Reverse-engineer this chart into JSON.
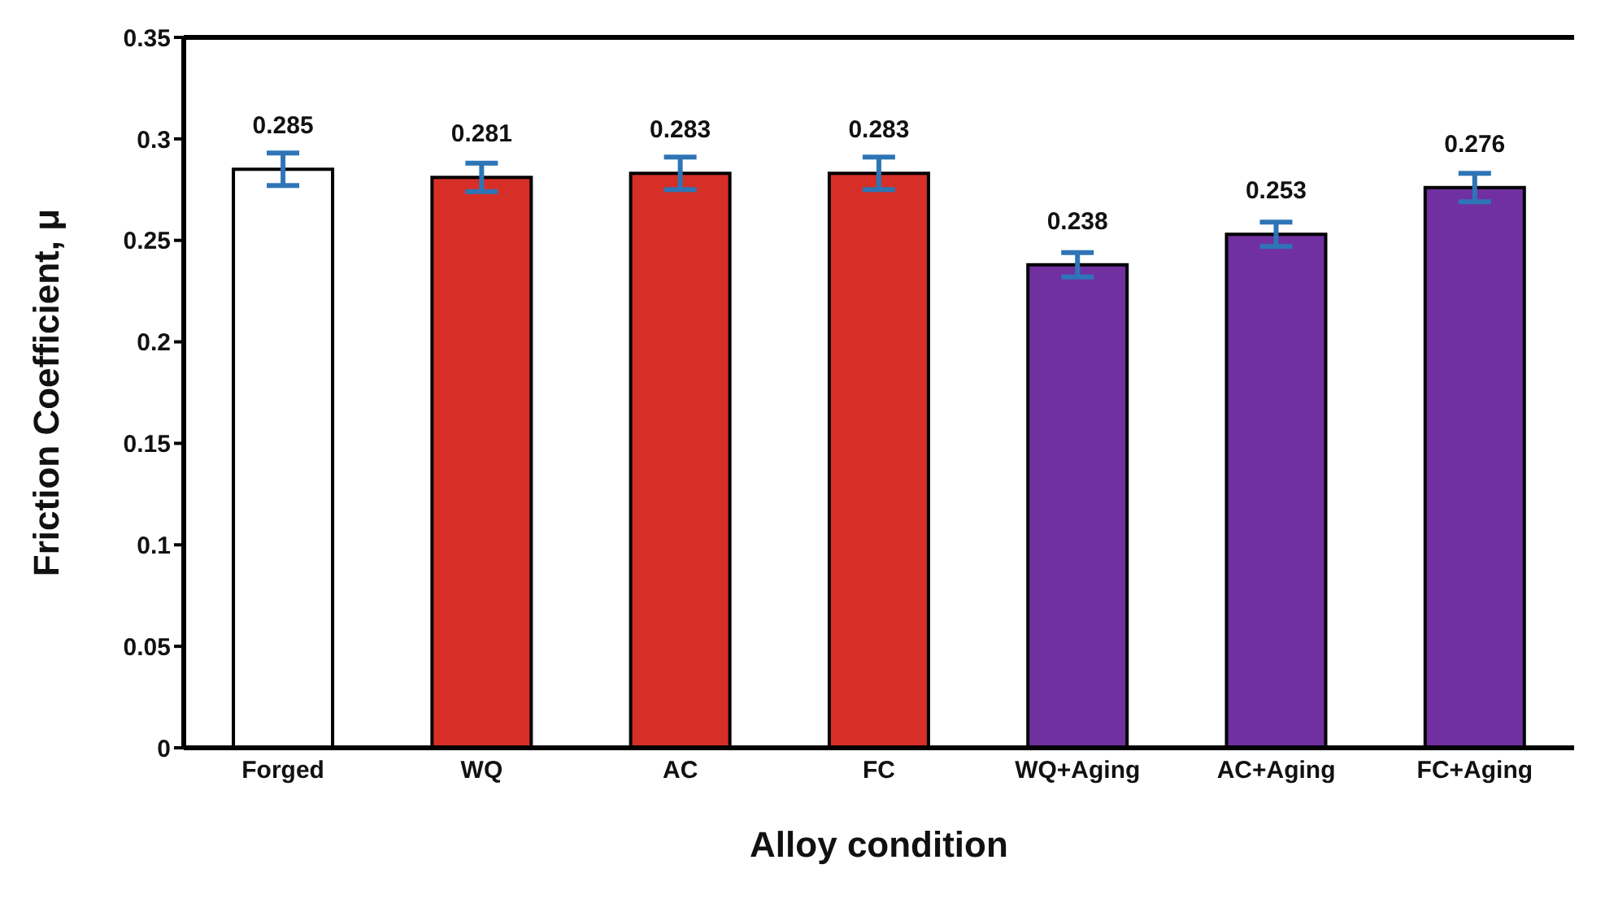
{
  "chart_data": {
    "type": "bar",
    "categories": [
      "Forged",
      "WQ",
      "AC",
      "FC",
      "WQ+Aging",
      "AC+Aging",
      "FC+Aging"
    ],
    "values": [
      0.285,
      0.281,
      0.283,
      0.283,
      0.238,
      0.253,
      0.276
    ],
    "errors": [
      0.008,
      0.007,
      0.008,
      0.008,
      0.006,
      0.006,
      0.007
    ],
    "colors": [
      "#ffffff",
      "#d62f27",
      "#d62f27",
      "#d62f27",
      "#7030a0",
      "#7030a0",
      "#7030a0"
    ],
    "xlabel": "Alloy condition",
    "ylabel": "Friction Coefficient, μ",
    "ylim": [
      0,
      0.35
    ],
    "yticks": [
      0,
      0.05,
      0.1,
      0.15,
      0.2,
      0.25,
      0.3,
      0.35
    ],
    "data_labels": true,
    "grid": false,
    "legend": false
  }
}
